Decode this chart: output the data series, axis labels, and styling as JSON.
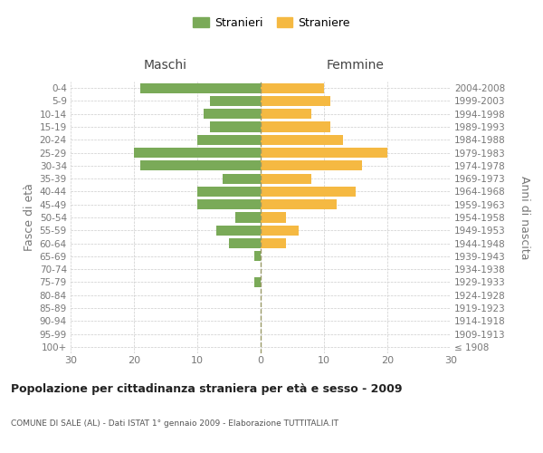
{
  "age_groups": [
    "100+",
    "95-99",
    "90-94",
    "85-89",
    "80-84",
    "75-79",
    "70-74",
    "65-69",
    "60-64",
    "55-59",
    "50-54",
    "45-49",
    "40-44",
    "35-39",
    "30-34",
    "25-29",
    "20-24",
    "15-19",
    "10-14",
    "5-9",
    "0-4"
  ],
  "birth_years": [
    "≤ 1908",
    "1909-1913",
    "1914-1918",
    "1919-1923",
    "1924-1928",
    "1929-1933",
    "1934-1938",
    "1939-1943",
    "1944-1948",
    "1949-1953",
    "1954-1958",
    "1959-1963",
    "1964-1968",
    "1969-1973",
    "1974-1978",
    "1979-1983",
    "1984-1988",
    "1989-1993",
    "1994-1998",
    "1999-2003",
    "2004-2008"
  ],
  "males": [
    0,
    0,
    0,
    0,
    0,
    1,
    0,
    1,
    5,
    7,
    4,
    10,
    10,
    6,
    19,
    20,
    10,
    8,
    9,
    8,
    19
  ],
  "females": [
    0,
    0,
    0,
    0,
    0,
    0,
    0,
    0,
    4,
    6,
    4,
    12,
    15,
    8,
    16,
    20,
    13,
    11,
    8,
    11,
    10
  ],
  "male_color": "#7aaa58",
  "female_color": "#f5b942",
  "grid_color": "#cccccc",
  "center_line_color": "#aaaaaa",
  "title": "Popolazione per cittadinanza straniera per età e sesso - 2009",
  "subtitle": "COMUNE DI SALE (AL) - Dati ISTAT 1° gennaio 2009 - Elaborazione TUTTITALIA.IT",
  "xlabel_left": "Maschi",
  "xlabel_right": "Femmine",
  "ylabel_left": "Fasce di età",
  "ylabel_right": "Anni di nascita",
  "legend_male": "Stranieri",
  "legend_female": "Straniere",
  "xlim": 30,
  "label_color": "#777777",
  "title_color": "#222222",
  "subtitle_color": "#555555"
}
